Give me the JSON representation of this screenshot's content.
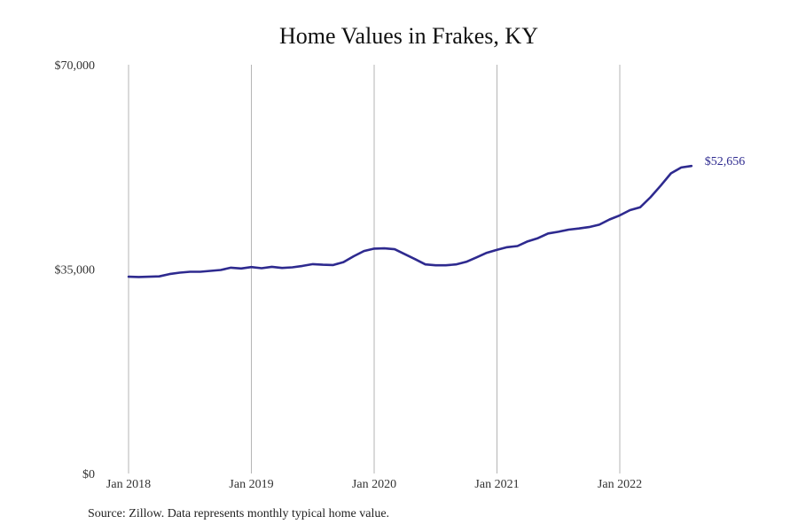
{
  "chart_data": {
    "type": "line",
    "title": "Home Values in Frakes, KY",
    "source": "Source: Zillow. Data represents monthly typical home value.",
    "xlabel": "",
    "ylabel": "",
    "ylim": [
      0,
      70000
    ],
    "y_ticks": [
      0,
      35000,
      70000
    ],
    "y_tick_labels": [
      "$0",
      "$35,000",
      "$70,000"
    ],
    "x_tick_labels": [
      "Jan 2018",
      "Jan 2019",
      "Jan 2020",
      "Jan 2021",
      "Jan 2022"
    ],
    "x_tick_dates": [
      "2018-01",
      "2019-01",
      "2020-01",
      "2021-01",
      "2022-01"
    ],
    "grid": "vertical lines at each year",
    "line_color": "#2e2a8f",
    "series": [
      {
        "x": [
          "2018-01",
          "2018-02",
          "2018-03",
          "2018-04",
          "2018-05",
          "2018-06",
          "2018-07",
          "2018-08",
          "2018-09",
          "2018-10",
          "2018-11",
          "2018-12",
          "2019-01",
          "2019-02",
          "2019-03",
          "2019-04",
          "2019-05",
          "2019-06",
          "2019-07",
          "2019-08",
          "2019-09",
          "2019-10",
          "2019-11",
          "2019-12",
          "2020-01",
          "2020-02",
          "2020-03",
          "2020-04",
          "2020-05",
          "2020-06",
          "2020-07",
          "2020-08",
          "2020-09",
          "2020-10",
          "2020-11",
          "2020-12",
          "2021-01",
          "2021-02",
          "2021-03",
          "2021-04",
          "2021-05",
          "2021-06",
          "2021-07",
          "2021-08",
          "2021-09",
          "2021-10",
          "2021-11",
          "2021-12",
          "2022-01",
          "2022-02",
          "2022-03",
          "2022-04",
          "2022-05",
          "2022-06",
          "2022-07",
          "2022-08"
        ],
        "values": [
          33700,
          33650,
          33700,
          33750,
          34150,
          34400,
          34550,
          34550,
          34700,
          34850,
          35250,
          35100,
          35350,
          35150,
          35400,
          35200,
          35300,
          35550,
          35850,
          35750,
          35700,
          36200,
          37200,
          38100,
          38500,
          38550,
          38400,
          37550,
          36700,
          35800,
          35650,
          35650,
          35800,
          36250,
          37000,
          37800,
          38300,
          38750,
          38950,
          39750,
          40300,
          41100,
          41400,
          41750,
          41950,
          42200,
          42600,
          43500,
          44200,
          45100,
          45600,
          47300,
          49300,
          51400,
          52400,
          52656
        ]
      }
    ],
    "end_label": "$52,656"
  }
}
